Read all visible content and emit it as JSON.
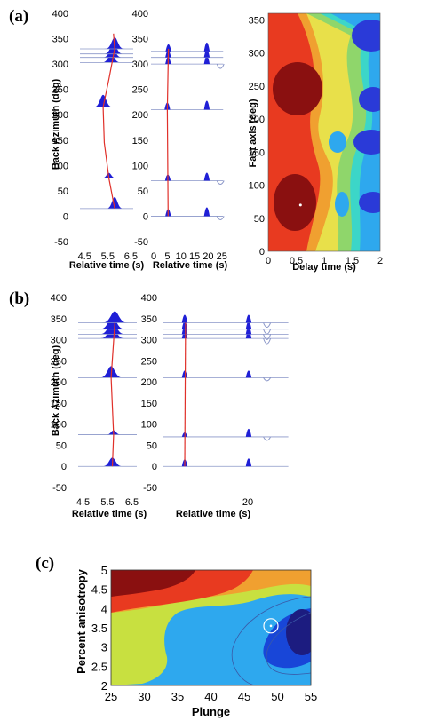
{
  "panel_labels": {
    "a": "(a)",
    "b": "(b)",
    "c": "(c)"
  },
  "colors": {
    "wave_fill": "#1f1fd6",
    "trace_line": "#8a96c8",
    "fit_line": "#e0302a",
    "blue_scale": [
      "#1c1c80",
      "#1846d8",
      "#2da0ee"
    ],
    "contour_scale": [
      "#3a1480",
      "#2a3ad8",
      "#2ea8ee",
      "#3cd6c8",
      "#8fd66b",
      "#e8e04a",
      "#f0a030",
      "#e83a20",
      "#8a1010"
    ]
  },
  "chart_data": [
    {
      "panel": "a-left",
      "type": "waveform_stack",
      "ylabel": "Back Azimuth (deg)",
      "xlabel": "Relative time (s)",
      "ylim": [
        -50,
        400
      ],
      "yticks": [
        -50,
        0,
        50,
        100,
        150,
        200,
        250,
        300,
        350,
        400
      ],
      "xlim": [
        4.3,
        6.6
      ],
      "xticks": [
        4.5,
        5.5,
        6.5
      ],
      "xticklabels": [
        "4.5",
        "5.5",
        "6.5"
      ],
      "traces": [
        {
          "baz": 15,
          "peak": 5.8,
          "width": 0.35,
          "amp": 13
        },
        {
          "baz": 75,
          "peak": 5.55,
          "width": 0.3,
          "amp": 6
        },
        {
          "baz": 215,
          "peak": 5.3,
          "width": 0.4,
          "amp": 14
        },
        {
          "baz": 303,
          "peak": 5.65,
          "width": 0.4,
          "amp": 9
        },
        {
          "baz": 313,
          "peak": 5.7,
          "width": 0.4,
          "amp": 11
        },
        {
          "baz": 320,
          "peak": 5.75,
          "width": 0.4,
          "amp": 12
        },
        {
          "baz": 330,
          "peak": 5.8,
          "width": 0.4,
          "amp": 13
        }
      ],
      "fit_curve": [
        [
          15,
          5.8
        ],
        [
          75,
          5.55
        ],
        [
          145,
          5.35
        ],
        [
          215,
          5.3
        ],
        [
          270,
          5.55
        ],
        [
          330,
          5.8
        ],
        [
          360,
          5.75
        ]
      ]
    },
    {
      "panel": "a-middle",
      "type": "waveform_stack",
      "xlabel": "Relative time (s)",
      "ylim": [
        -50,
        400
      ],
      "yticks": [
        -50,
        0,
        50,
        100,
        150,
        200,
        250,
        300,
        350,
        400
      ],
      "xlim": [
        -1,
        29
      ],
      "xticks": [
        0,
        5,
        10,
        15,
        20,
        25
      ],
      "xticklabels": [
        "0",
        "5",
        "10",
        "15",
        "20",
        "25"
      ],
      "trace_end": 25.5,
      "traces": [
        {
          "baz": 0,
          "arrivals": [
            [
              5.3,
              8
            ],
            [
              19.5,
              10
            ]
          ],
          "tail": [
            24.5,
            8
          ]
        },
        {
          "baz": 70,
          "arrivals": [
            [
              5.2,
              7
            ],
            [
              19.5,
              9
            ]
          ],
          "tail": [
            24.5,
            8
          ]
        },
        {
          "baz": 210,
          "arrivals": [
            [
              5.0,
              8
            ],
            [
              19.5,
              10
            ]
          ],
          "tail": null
        },
        {
          "baz": 300,
          "arrivals": [
            [
              5.3,
              8
            ],
            [
              19.5,
              9
            ]
          ],
          "tail": [
            24.5,
            10
          ]
        },
        {
          "baz": 313,
          "arrivals": [
            [
              5.3,
              8
            ],
            [
              19.5,
              9
            ]
          ],
          "tail": null
        },
        {
          "baz": 325,
          "arrivals": [
            [
              5.4,
              8
            ],
            [
              19.5,
              10
            ]
          ],
          "tail": null
        }
      ],
      "fit_curve": [
        [
          0,
          5.3
        ],
        [
          210,
          5.0
        ],
        [
          330,
          5.4
        ]
      ]
    },
    {
      "panel": "a-right",
      "type": "heatmap",
      "ylabel": "Fast axis (deg)",
      "xlabel": "Delay time (s)",
      "xlim": [
        0,
        2
      ],
      "ylim": [
        0,
        360
      ],
      "xticks": [
        0,
        0.5,
        1,
        1.5,
        2
      ],
      "xticklabels": [
        "0",
        "0.5",
        "1",
        "1.5",
        "2"
      ],
      "yticks": [
        0,
        50,
        100,
        150,
        200,
        250,
        300,
        350
      ],
      "minimum": [
        0.1,
        70
      ],
      "maxima": [
        [
          0.25,
          70
        ],
        [
          0.2,
          250
        ]
      ]
    },
    {
      "panel": "b-left",
      "type": "waveform_stack",
      "ylabel": "Back Azimuth (deg)",
      "xlabel": "Relative time (s)",
      "ylim": [
        -50,
        400
      ],
      "yticks": [
        -50,
        0,
        50,
        100,
        150,
        200,
        250,
        300,
        350,
        400
      ],
      "xlim": [
        4.3,
        6.7
      ],
      "xticks": [
        4.5,
        5.5,
        6.5
      ],
      "xticklabels": [
        "4.5",
        "5.5",
        "6.5"
      ],
      "traces": [
        {
          "baz": 0,
          "peak": 5.7,
          "width": 0.4,
          "amp": 10
        },
        {
          "baz": 75,
          "peak": 5.75,
          "width": 0.3,
          "amp": 5
        },
        {
          "baz": 210,
          "peak": 5.65,
          "width": 0.45,
          "amp": 13
        },
        {
          "baz": 303,
          "peak": 5.7,
          "width": 0.5,
          "amp": 12
        },
        {
          "baz": 313,
          "peak": 5.7,
          "width": 0.5,
          "amp": 14
        },
        {
          "baz": 325,
          "peak": 5.7,
          "width": 0.5,
          "amp": 14
        },
        {
          "baz": 340,
          "peak": 5.8,
          "width": 0.5,
          "amp": 13
        }
      ],
      "fit_curve": [
        [
          0,
          5.7
        ],
        [
          75,
          5.75
        ],
        [
          210,
          5.65
        ],
        [
          340,
          5.8
        ]
      ]
    },
    {
      "panel": "b-middle",
      "type": "waveform_stack",
      "xlabel": "Relative time (s)",
      "ylim": [
        -50,
        400
      ],
      "yticks": [
        -50,
        0,
        50,
        100,
        150,
        200,
        250,
        300,
        350,
        400
      ],
      "xlim": [
        0,
        30
      ],
      "xticks": [
        20
      ],
      "xticklabels": [
        "20"
      ],
      "trace_end": 29.5,
      "traces": [
        {
          "baz": 0,
          "arrivals": [
            [
              5.2,
              8
            ],
            [
              20.2,
              9
            ]
          ],
          "tail": null
        },
        {
          "baz": 70,
          "arrivals": [
            [
              5.2,
              5
            ],
            [
              20.2,
              9
            ]
          ],
          "tail": [
            24.5,
            8
          ]
        },
        {
          "baz": 210,
          "arrivals": [
            [
              5.2,
              8
            ],
            [
              20.2,
              8
            ]
          ],
          "tail": [
            24.5,
            7
          ]
        },
        {
          "baz": 303,
          "arrivals": [
            [
              5.2,
              8
            ],
            [
              20.2,
              9
            ]
          ],
          "tail": [
            24.5,
            12
          ]
        },
        {
          "baz": 313,
          "arrivals": [
            [
              5.2,
              9
            ],
            [
              20.2,
              9
            ]
          ],
          "tail": [
            24.5,
            12
          ]
        },
        {
          "baz": 325,
          "arrivals": [
            [
              5.2,
              9
            ],
            [
              20.2,
              9
            ]
          ],
          "tail": [
            24.5,
            11
          ]
        },
        {
          "baz": 340,
          "arrivals": [
            [
              5.2,
              9
            ],
            [
              20.2,
              9
            ]
          ],
          "tail": [
            24.5,
            10
          ]
        }
      ],
      "fit_curve": [
        [
          0,
          5.2
        ],
        [
          340,
          5.4
        ]
      ]
    },
    {
      "panel": "c",
      "type": "heatmap",
      "xlabel": "Plunge",
      "ylabel": "Percent anisotropy",
      "xlim": [
        25,
        55
      ],
      "ylim": [
        2,
        5
      ],
      "xticks": [
        25,
        30,
        35,
        40,
        45,
        50,
        55
      ],
      "yticks": [
        2,
        2.5,
        3,
        3.5,
        4,
        4.5,
        5
      ],
      "yticklabels": [
        "2",
        "2.5",
        "3",
        "3.5",
        "4",
        "4.5",
        "5"
      ],
      "minimum": [
        49,
        3.55
      ]
    }
  ]
}
